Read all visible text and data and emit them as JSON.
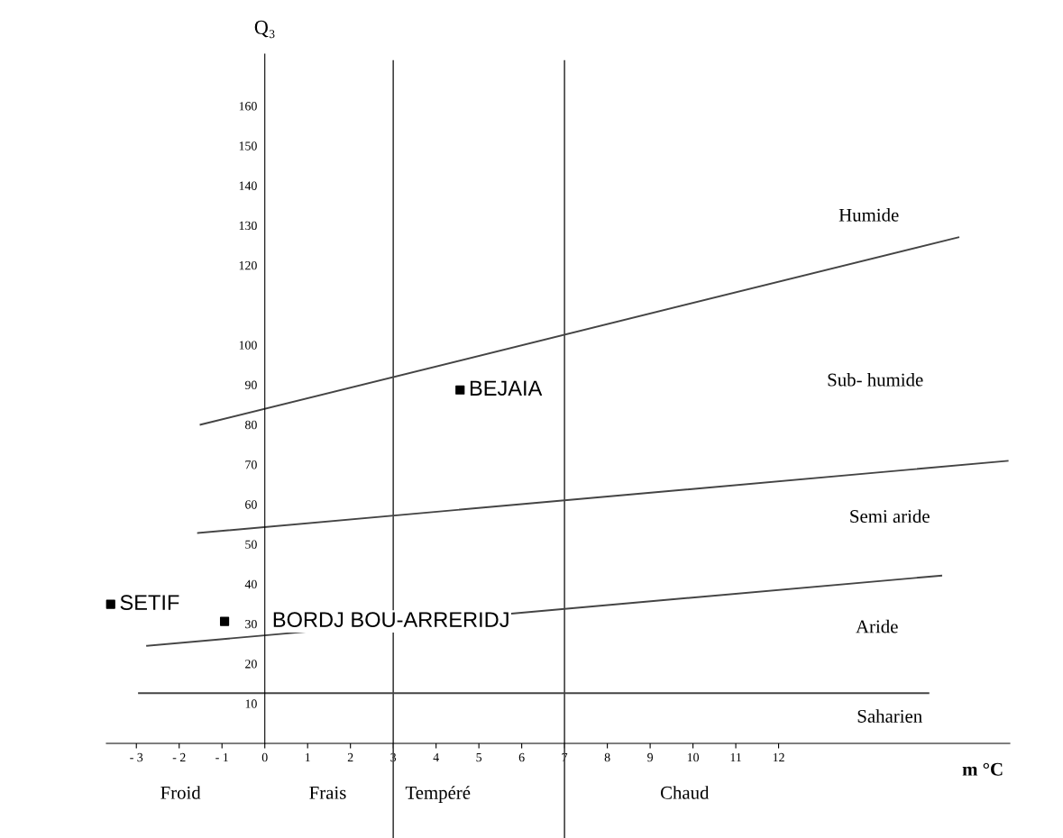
{
  "chart_data": {
    "type": "scatter",
    "xlabel": "m °C",
    "ylabel": "Q₃",
    "xlim": [
      -3.7,
      17.4
    ],
    "ylim": [
      0,
      173
    ],
    "xticks": [
      {
        "value": -3,
        "label": "- 3"
      },
      {
        "value": -2,
        "label": "- 2"
      },
      {
        "value": -1,
        "label": "- 1"
      },
      0,
      1,
      2,
      3,
      4,
      5,
      6,
      7,
      8,
      9,
      10,
      11,
      12
    ],
    "yticks": [
      10,
      20,
      30,
      40,
      50,
      60,
      70,
      80,
      90,
      100,
      120,
      130,
      140,
      150,
      160
    ],
    "grid": false,
    "marker": "square",
    "series": [
      {
        "name": "BEJAIA",
        "color": "#000000",
        "x": [
          4.56
        ],
        "values": [
          88.7
        ]
      },
      {
        "name": "SETIF",
        "color": "#000000",
        "x": [
          -3.6
        ],
        "values": [
          34.9
        ]
      },
      {
        "name": "BORDJ BOU-ARRERIDJ",
        "color": "#000000",
        "x": [
          -0.94
        ],
        "values": [
          30.6
        ]
      },
      {
        "type": "line",
        "color": "#444444",
        "marker": "none",
        "x": [
          -1.5,
          16.2
        ],
        "values": [
          80,
          127
        ]
      },
      {
        "type": "line",
        "color": "#444444",
        "marker": "none",
        "x": [
          -1.56,
          17.35
        ],
        "values": [
          52.8,
          70.9
        ]
      },
      {
        "type": "line",
        "color": "#444444",
        "marker": "none",
        "x": [
          -2.75,
          15.8
        ],
        "values": [
          24.5,
          42.1
        ]
      },
      {
        "type": "line",
        "color": "#444444",
        "marker": "none",
        "x": [
          -2.94,
          15.5
        ],
        "values": [
          12.6,
          12.6
        ]
      }
    ],
    "ref_lines": [
      {
        "axis": "x",
        "value": 3,
        "color": "#444444"
      },
      {
        "axis": "x",
        "value": 7,
        "color": "#444444"
      }
    ],
    "annotations": [
      "Humide",
      "Sub- humide",
      "Semi aride",
      "Aride",
      "Saharien",
      "Froid",
      "Frais",
      "Tempéré",
      "Chaud"
    ]
  }
}
